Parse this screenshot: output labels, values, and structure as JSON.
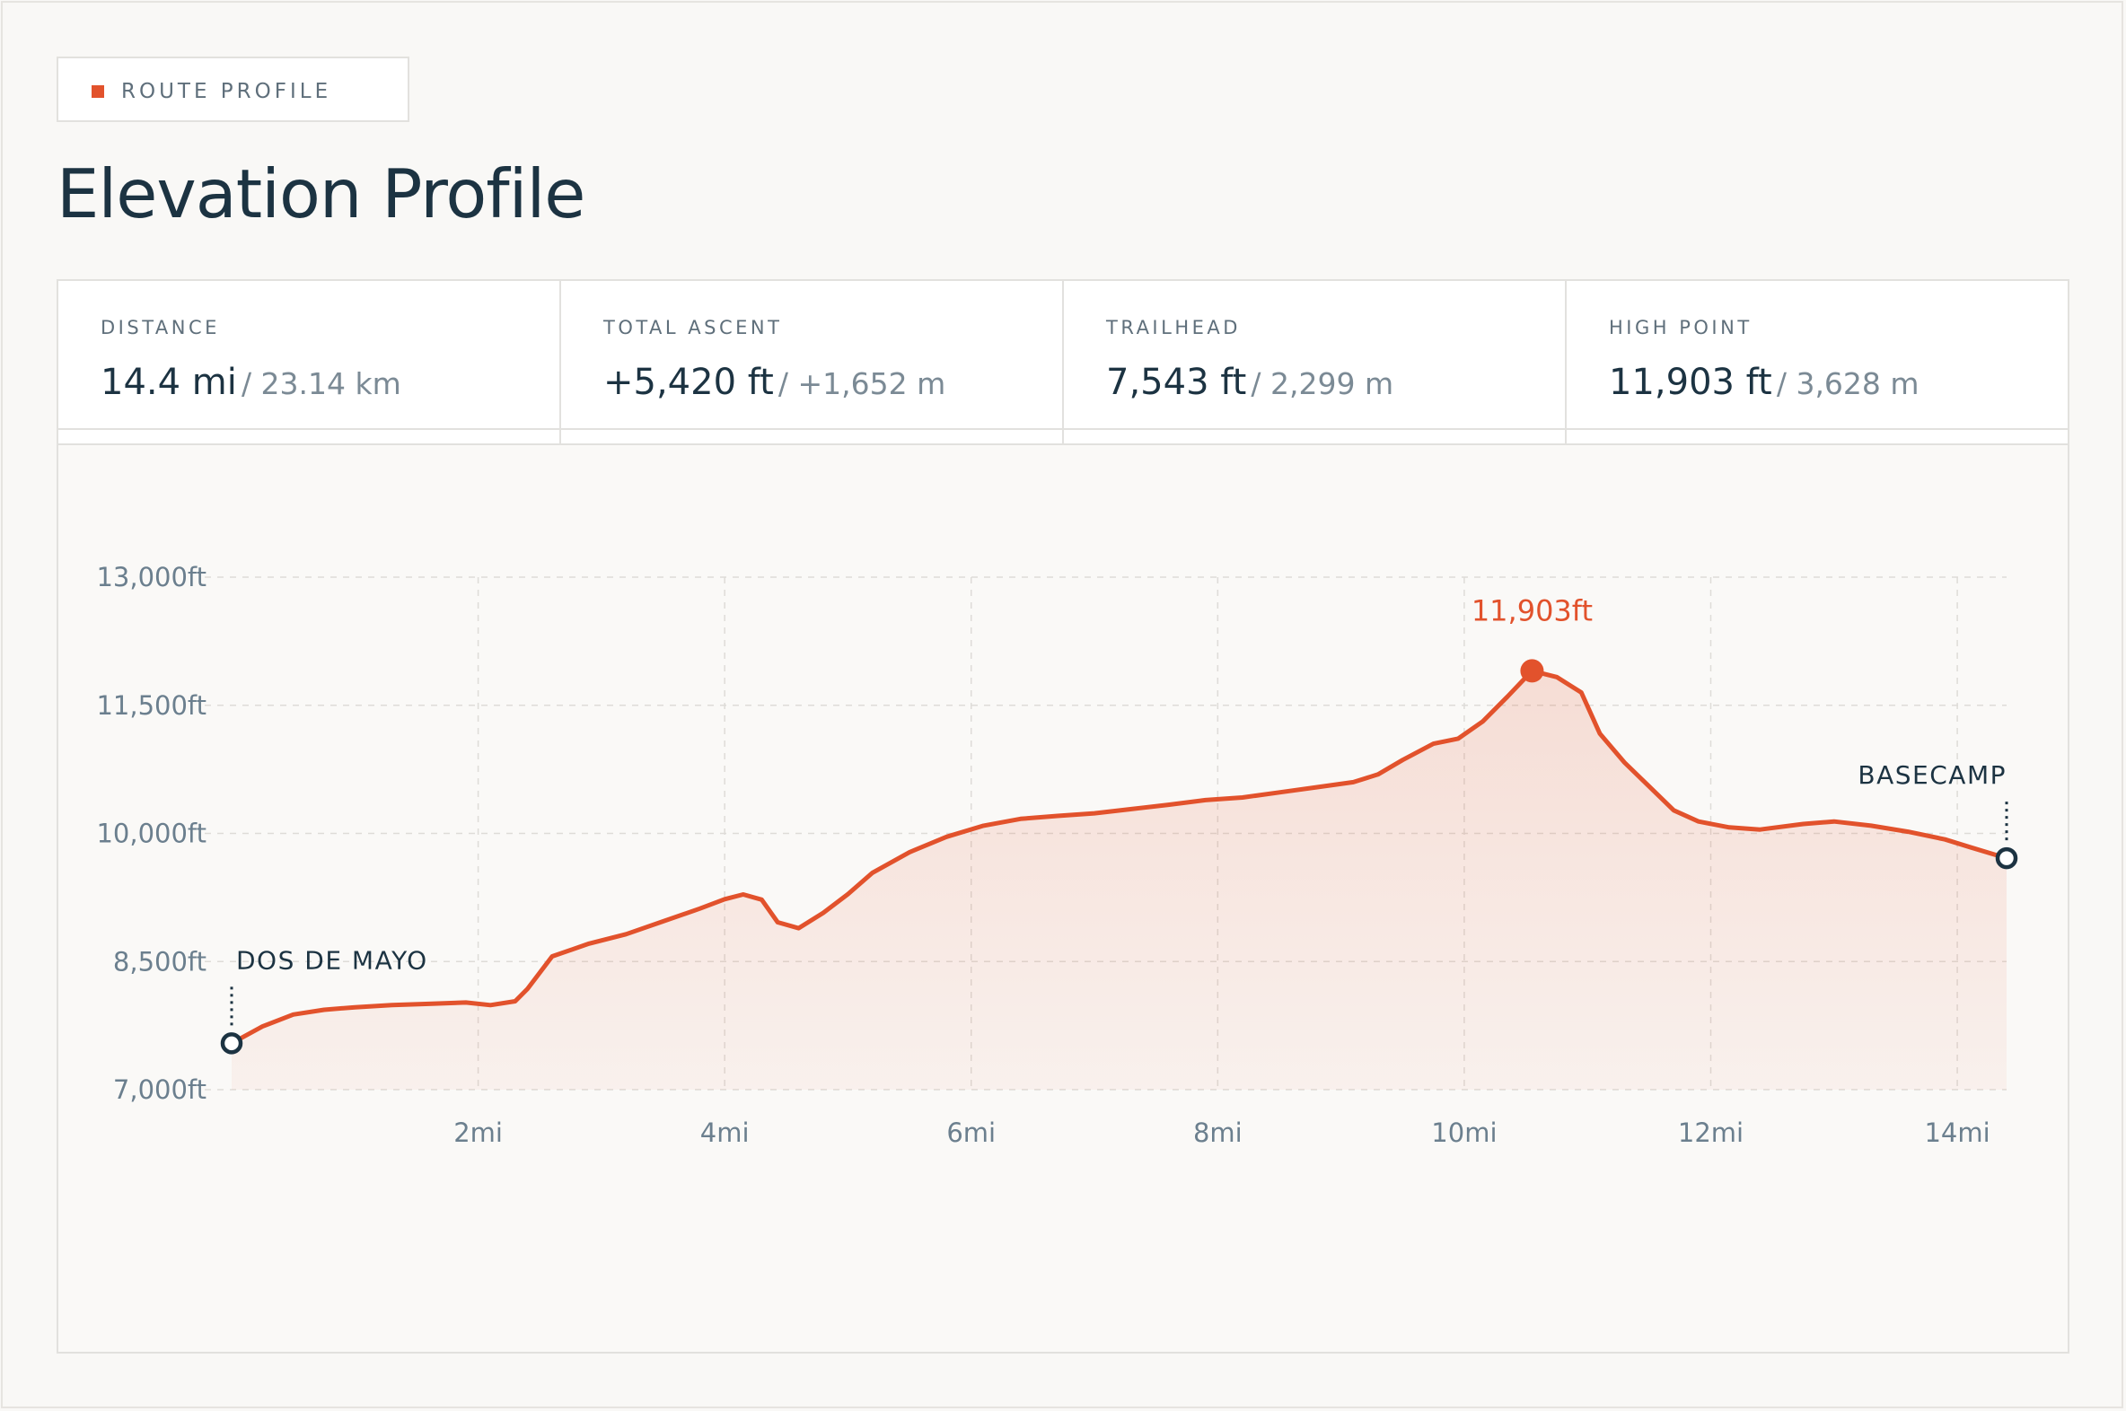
{
  "header": {
    "tag_label": "ROUTE PROFILE",
    "title": "Elevation Profile"
  },
  "stats": [
    {
      "label": "DISTANCE",
      "value": "14.4 mi",
      "secondary": "/ 23.14 km"
    },
    {
      "label": "TOTAL ASCENT",
      "value": "+5,420 ft",
      "secondary": "/ +1,652 m"
    },
    {
      "label": "TRAILHEAD",
      "value": "7,543 ft",
      "secondary": "/ 2,299 m"
    },
    {
      "label": "HIGH POINT",
      "value": "11,903 ft",
      "secondary": "/ 3,628 m"
    }
  ],
  "colors": {
    "accent": "#e2522c",
    "ink": "#1c3342",
    "muted": "#6b7f8e"
  },
  "chart_data": {
    "type": "area",
    "title": "",
    "xlabel": "",
    "ylabel": "",
    "xlim": [
      0,
      14.4
    ],
    "ylim": [
      7000,
      13000
    ],
    "grid": true,
    "x_ticks": [
      2,
      4,
      6,
      8,
      10,
      12,
      14
    ],
    "x_tick_labels": [
      "2mi",
      "4mi",
      "6mi",
      "8mi",
      "10mi",
      "12mi",
      "14mi"
    ],
    "y_ticks": [
      7000,
      8500,
      10000,
      11500,
      13000
    ],
    "y_tick_labels": [
      "7,000ft",
      "8,500ft",
      "10,000ft",
      "11,500ft",
      "13,000ft"
    ],
    "series": [
      {
        "x": [
          0,
          0.25,
          0.5,
          0.75,
          1.0,
          1.3,
          1.6,
          1.9,
          2.1,
          2.3,
          2.4,
          2.6,
          2.9,
          3.2,
          3.5,
          3.8,
          4.0,
          4.15,
          4.3,
          4.43,
          4.6,
          4.8,
          5.0,
          5.2,
          5.5,
          5.8,
          6.1,
          6.4,
          6.7,
          7.0,
          7.3,
          7.6,
          7.9,
          8.2,
          8.5,
          8.8,
          9.1,
          9.3,
          9.5,
          9.75,
          9.95,
          10.15,
          10.35,
          10.55,
          10.75,
          10.95,
          11.1,
          11.3,
          11.5,
          11.7,
          11.9,
          12.15,
          12.4,
          12.75,
          13.0,
          13.3,
          13.6,
          13.9,
          14.1,
          14.4
        ],
        "y": [
          7543,
          7740,
          7880,
          7935,
          7965,
          7990,
          8005,
          8020,
          7990,
          8035,
          8180,
          8560,
          8710,
          8820,
          8970,
          9120,
          9230,
          9285,
          9225,
          8960,
          8890,
          9070,
          9290,
          9540,
          9780,
          9960,
          10090,
          10170,
          10205,
          10235,
          10285,
          10335,
          10390,
          10420,
          10480,
          10540,
          10600,
          10690,
          10860,
          11050,
          11110,
          11310,
          11600,
          11903,
          11830,
          11650,
          11170,
          10830,
          10550,
          10270,
          10140,
          10070,
          10045,
          10110,
          10140,
          10090,
          10020,
          9930,
          9840,
          9710
        ]
      }
    ],
    "peak_label": "11,903ft",
    "annotations": [
      {
        "label": "DOS DE MAYO",
        "x": 0,
        "y": 7543
      },
      {
        "label": "BASECAMP",
        "x": 14.4,
        "y": 9710
      }
    ]
  }
}
